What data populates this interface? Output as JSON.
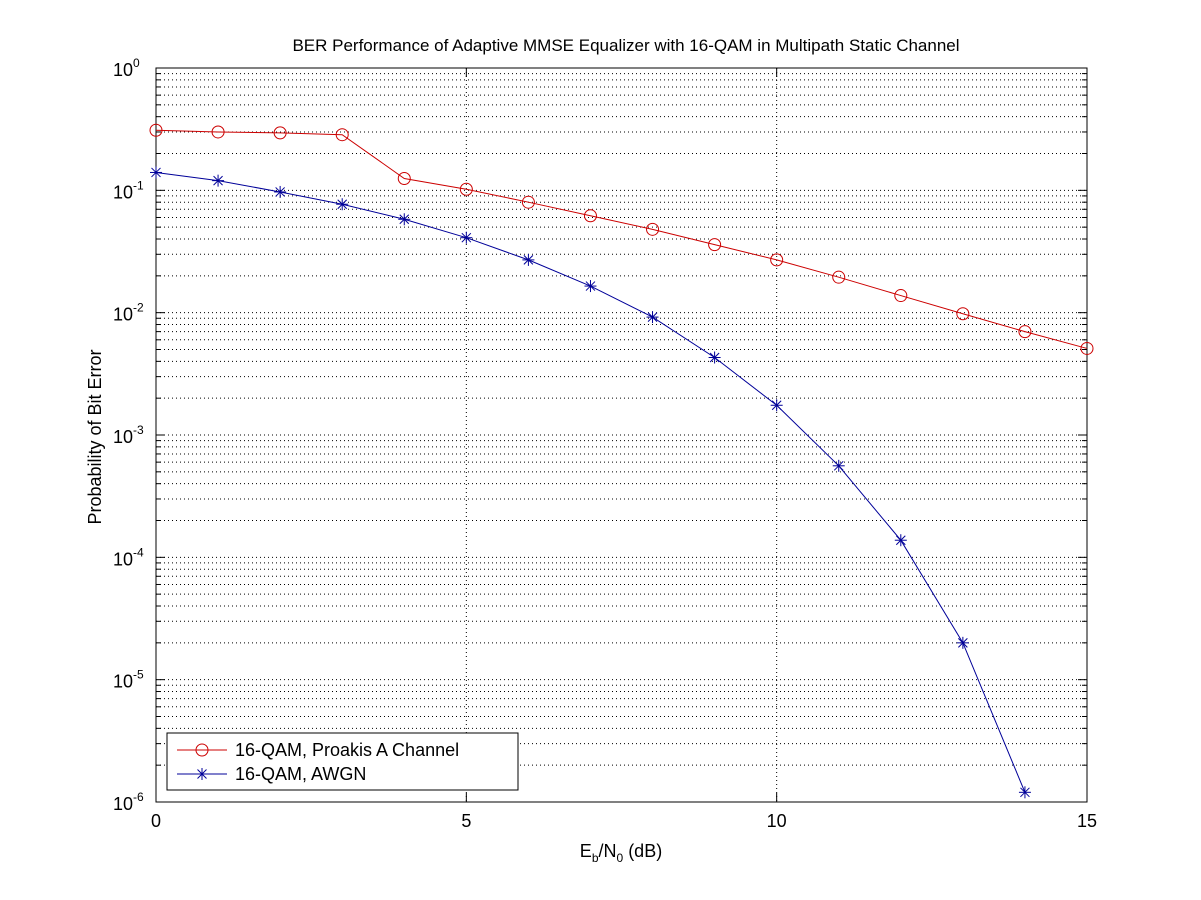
{
  "chart_data": {
    "type": "line",
    "title": "BER Performance of Adaptive MMSE Equalizer with 16-QAM in Multipath Static Channel",
    "xlabel": {
      "main": "E",
      "sub1": "b",
      "mid": "/N",
      "sub2": "0",
      "tail": " (dB)"
    },
    "ylabel": "Probability of Bit Error",
    "xlim": [
      0,
      15
    ],
    "ylim": [
      1e-06,
      1
    ],
    "yscale": "log",
    "grid": true,
    "x_ticks": [
      "0",
      "5",
      "10",
      "15"
    ],
    "y_ticks": [
      {
        "base": "10",
        "exp": "0"
      },
      {
        "base": "10",
        "exp": "-1"
      },
      {
        "base": "10",
        "exp": "-2"
      },
      {
        "base": "10",
        "exp": "-3"
      },
      {
        "base": "10",
        "exp": "-4"
      },
      {
        "base": "10",
        "exp": "-5"
      },
      {
        "base": "10",
        "exp": "-6"
      }
    ],
    "legend_position": "bottom-left",
    "series": [
      {
        "name": "16-QAM, Proakis A Channel",
        "color": "#cc0000",
        "marker": "circle",
        "x": [
          0,
          1,
          2,
          3,
          4,
          5,
          6,
          7,
          8,
          9,
          10,
          11,
          12,
          13,
          14,
          15
        ],
        "y": [
          0.31,
          0.3,
          0.295,
          0.285,
          0.125,
          0.102,
          0.08,
          0.062,
          0.048,
          0.036,
          0.027,
          0.0195,
          0.0138,
          0.0098,
          0.007,
          0.0051
        ]
      },
      {
        "name": "16-QAM, AWGN",
        "color": "#000099",
        "marker": "asterisk",
        "x": [
          0,
          1,
          2,
          3,
          4,
          5,
          6,
          7,
          8,
          9,
          10,
          11,
          12,
          13,
          14
        ],
        "y": [
          0.14,
          0.12,
          0.097,
          0.077,
          0.058,
          0.041,
          0.027,
          0.0165,
          0.0092,
          0.0043,
          0.00175,
          0.00056,
          0.000138,
          2e-05,
          1.2e-06
        ]
      }
    ]
  }
}
